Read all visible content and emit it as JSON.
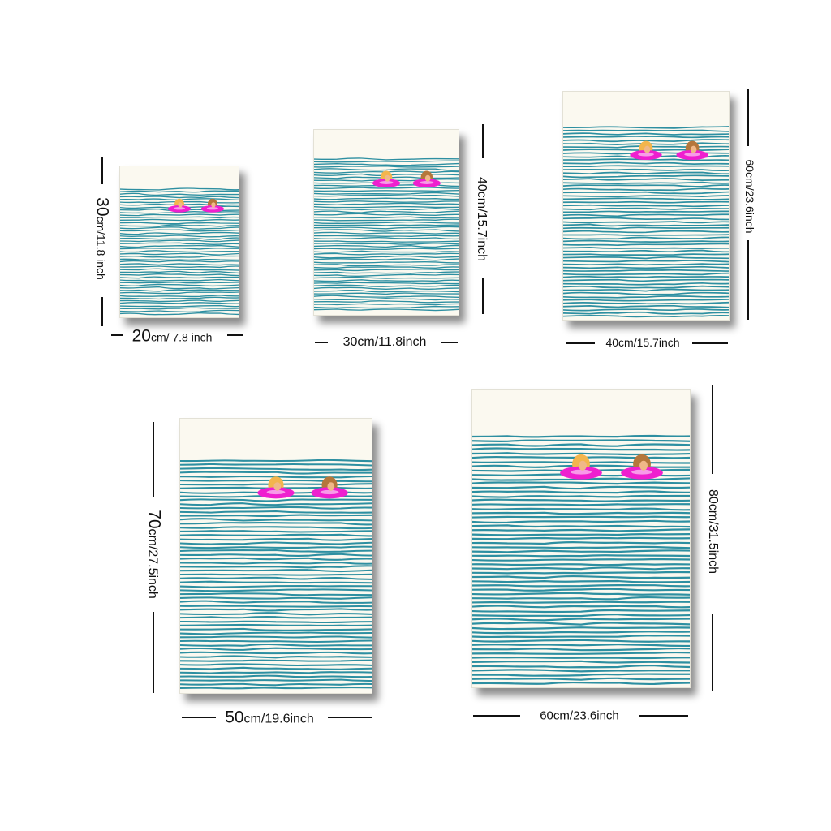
{
  "colors": {
    "paper": "#fbf9f0",
    "water": "#2d8fa1",
    "float_ring": "#ef1fcf",
    "blonde_hair": "#f3b54d",
    "brown_hair": "#b5773b",
    "skin": "#f0b888"
  },
  "posters": [
    {
      "name": "poster-20x30",
      "width_label_num": "20",
      "width_label_unit": "cm/ 7.8 inch",
      "height_label_num": "30",
      "height_label_unit": "cm/11.8 inch"
    },
    {
      "name": "poster-30x40",
      "width_label_num": "",
      "width_label_unit": "30cm/11.8inch",
      "height_label_num": "",
      "height_label_unit": "40cm/15.7inch"
    },
    {
      "name": "poster-40x60",
      "width_label_num": "",
      "width_label_unit": "40cm/15.7inch",
      "height_label_num": "",
      "height_label_unit": "60cm/23.6inch"
    },
    {
      "name": "poster-50x70",
      "width_label_num": "50",
      "width_label_unit": "cm/19.6inch",
      "height_label_num": "70",
      "height_label_unit": "cm/27.5inch"
    },
    {
      "name": "poster-60x80",
      "width_label_num": "",
      "width_label_unit": "60cm/23.6inch",
      "height_label_num": "",
      "height_label_unit": "80cm/31.5inch"
    }
  ]
}
